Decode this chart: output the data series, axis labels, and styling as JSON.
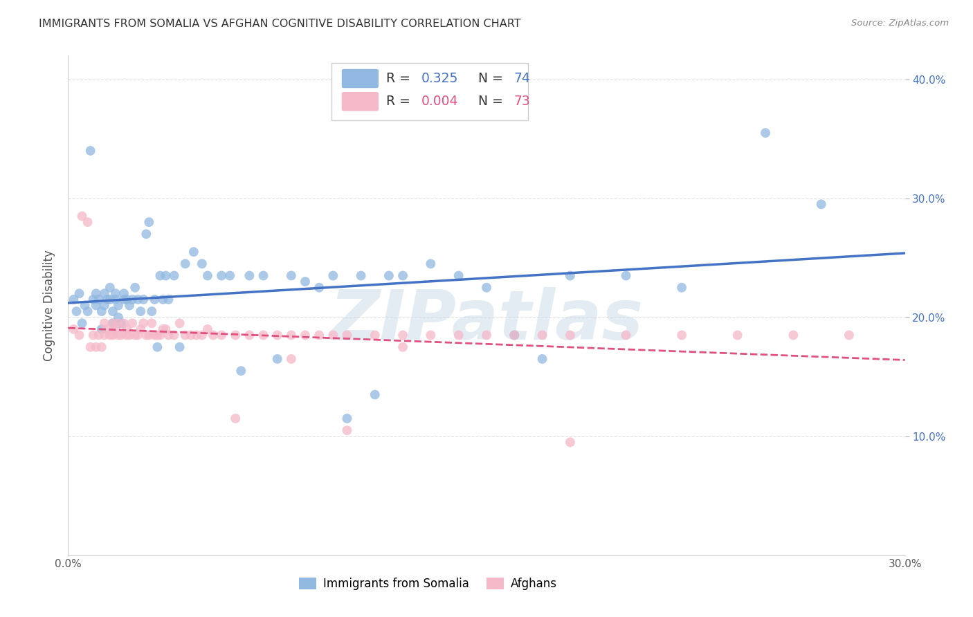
{
  "title": "IMMIGRANTS FROM SOMALIA VS AFGHAN COGNITIVE DISABILITY CORRELATION CHART",
  "source": "Source: ZipAtlas.com",
  "ylabel": "Cognitive Disability",
  "xlim": [
    0.0,
    0.3
  ],
  "ylim": [
    0.0,
    0.42
  ],
  "grid_color": "#dddddd",
  "background_color": "#ffffff",
  "blue_color": "#90b8e0",
  "pink_color": "#f5b8c8",
  "blue_line_color": "#4472c4",
  "pink_line_color": "#e05080",
  "R_blue": 0.325,
  "N_blue": 74,
  "R_pink": 0.004,
  "N_pink": 73,
  "legend_label_blue": "Immigrants from Somalia",
  "legend_label_pink": "Afghans",
  "watermark": "ZIPatlas",
  "somalia_x": [
    0.002,
    0.003,
    0.004,
    0.005,
    0.006,
    0.007,
    0.008,
    0.009,
    0.01,
    0.01,
    0.011,
    0.012,
    0.012,
    0.013,
    0.013,
    0.014,
    0.015,
    0.015,
    0.016,
    0.016,
    0.017,
    0.017,
    0.018,
    0.018,
    0.019,
    0.02,
    0.02,
    0.021,
    0.022,
    0.023,
    0.024,
    0.025,
    0.026,
    0.027,
    0.028,
    0.029,
    0.03,
    0.031,
    0.032,
    0.033,
    0.034,
    0.035,
    0.036,
    0.038,
    0.04,
    0.042,
    0.045,
    0.048,
    0.05,
    0.055,
    0.058,
    0.062,
    0.065,
    0.07,
    0.075,
    0.08,
    0.085,
    0.09,
    0.095,
    0.1,
    0.105,
    0.11,
    0.115,
    0.12,
    0.13,
    0.14,
    0.15,
    0.16,
    0.17,
    0.18,
    0.2,
    0.22,
    0.25,
    0.27
  ],
  "somalia_y": [
    0.215,
    0.205,
    0.22,
    0.195,
    0.21,
    0.205,
    0.34,
    0.215,
    0.21,
    0.22,
    0.215,
    0.19,
    0.205,
    0.21,
    0.22,
    0.215,
    0.215,
    0.225,
    0.195,
    0.205,
    0.215,
    0.22,
    0.21,
    0.2,
    0.195,
    0.215,
    0.22,
    0.215,
    0.21,
    0.215,
    0.225,
    0.215,
    0.205,
    0.215,
    0.27,
    0.28,
    0.205,
    0.215,
    0.175,
    0.235,
    0.215,
    0.235,
    0.215,
    0.235,
    0.175,
    0.245,
    0.255,
    0.245,
    0.235,
    0.235,
    0.235,
    0.155,
    0.235,
    0.235,
    0.165,
    0.235,
    0.23,
    0.225,
    0.235,
    0.115,
    0.235,
    0.135,
    0.235,
    0.235,
    0.245,
    0.235,
    0.225,
    0.185,
    0.165,
    0.235,
    0.235,
    0.225,
    0.355,
    0.295
  ],
  "afghan_x": [
    0.002,
    0.004,
    0.005,
    0.007,
    0.008,
    0.009,
    0.01,
    0.011,
    0.012,
    0.013,
    0.013,
    0.014,
    0.015,
    0.016,
    0.016,
    0.017,
    0.018,
    0.018,
    0.019,
    0.02,
    0.021,
    0.021,
    0.022,
    0.023,
    0.024,
    0.025,
    0.026,
    0.027,
    0.028,
    0.029,
    0.03,
    0.031,
    0.032,
    0.033,
    0.034,
    0.035,
    0.036,
    0.038,
    0.04,
    0.042,
    0.044,
    0.046,
    0.048,
    0.05,
    0.052,
    0.055,
    0.06,
    0.065,
    0.07,
    0.075,
    0.08,
    0.085,
    0.09,
    0.095,
    0.1,
    0.11,
    0.12,
    0.13,
    0.14,
    0.15,
    0.16,
    0.17,
    0.18,
    0.2,
    0.22,
    0.24,
    0.26,
    0.28,
    0.06,
    0.08,
    0.1,
    0.12,
    0.18
  ],
  "afghan_y": [
    0.19,
    0.185,
    0.285,
    0.28,
    0.175,
    0.185,
    0.175,
    0.185,
    0.175,
    0.195,
    0.185,
    0.19,
    0.185,
    0.195,
    0.185,
    0.19,
    0.195,
    0.185,
    0.185,
    0.195,
    0.185,
    0.19,
    0.185,
    0.195,
    0.185,
    0.185,
    0.19,
    0.195,
    0.185,
    0.185,
    0.195,
    0.185,
    0.185,
    0.185,
    0.19,
    0.19,
    0.185,
    0.185,
    0.195,
    0.185,
    0.185,
    0.185,
    0.185,
    0.19,
    0.185,
    0.185,
    0.185,
    0.185,
    0.185,
    0.185,
    0.185,
    0.185,
    0.185,
    0.185,
    0.185,
    0.185,
    0.185,
    0.185,
    0.185,
    0.185,
    0.185,
    0.185,
    0.185,
    0.185,
    0.185,
    0.185,
    0.185,
    0.185,
    0.115,
    0.165,
    0.105,
    0.175,
    0.095
  ]
}
